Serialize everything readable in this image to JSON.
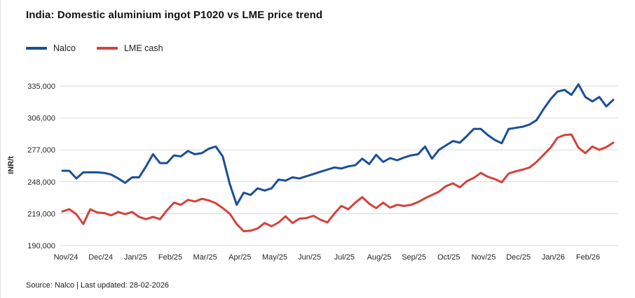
{
  "title": "India: Domestic aluminium ingot P1020 vs LME price trend",
  "legend": [
    {
      "label": "Nalco",
      "color": "#1a4e9a"
    },
    {
      "label": "LME cash",
      "color": "#d3423b"
    }
  ],
  "y_axis": {
    "title": "INR/t",
    "ticks": [
      {
        "label": "335,000",
        "value": 335000
      },
      {
        "label": "306,000",
        "value": 306000
      },
      {
        "label": "277,000",
        "value": 277000
      },
      {
        "label": "248,000",
        "value": 248000
      },
      {
        "label": "219,000",
        "value": 219000
      },
      {
        "label": "190,000",
        "value": 190000
      }
    ]
  },
  "x_axis": {
    "labels": [
      "Nov/24",
      "Dec/24",
      "Jan/25",
      "Feb/25",
      "Mar/25",
      "Apr/25",
      "May/25",
      "Jun/25",
      "Jul/25",
      "Aug/25",
      "Sep/25",
      "Oct/25",
      "Nov/25",
      "Dec/25",
      "Jan/26",
      "Feb/26"
    ]
  },
  "footer": {
    "text": "Source: Nalco | Last updated: 28-02-2026"
  },
  "chart_data": {
    "type": "line",
    "title": "India: Domestic aluminium ingot P1020 vs LME price trend",
    "xlabel": "",
    "ylabel": "INR/t",
    "ylim": [
      190000,
      335000
    ],
    "y_tick_step": 29000,
    "grid": true,
    "legend_position": "top-left",
    "x_categories": [
      "Nov/24",
      "Dec/24",
      "Jan/25",
      "Feb/25",
      "Mar/25",
      "Apr/25",
      "May/25",
      "Jun/25",
      "Jul/25",
      "Aug/25",
      "Sep/25",
      "Oct/25",
      "Nov/25",
      "Dec/25",
      "Jan/26",
      "Feb/26"
    ],
    "points_per_month": 5,
    "series": [
      {
        "name": "Nalco",
        "color": "#1a4e9a",
        "values": [
          258000,
          258000,
          251000,
          256500,
          256500,
          256500,
          256000,
          254500,
          251000,
          247000,
          252000,
          252000,
          262000,
          273000,
          265000,
          265000,
          272000,
          271000,
          276000,
          273000,
          274000,
          278000,
          280000,
          271000,
          246000,
          227000,
          238000,
          236000,
          242000,
          240000,
          242000,
          250000,
          249000,
          252000,
          251000,
          253000,
          255000,
          257000,
          259000,
          261000,
          260000,
          262000,
          263000,
          269000,
          264000,
          272500,
          266000,
          269500,
          267500,
          270000,
          272000,
          273000,
          280000,
          269000,
          277000,
          281000,
          285000,
          283500,
          289500,
          296000,
          296000,
          290500,
          286000,
          283000,
          296000,
          297000,
          298000,
          300000,
          304000,
          314000,
          323000,
          330000,
          331500,
          327000,
          336500,
          325000,
          321000,
          325000,
          316500,
          322500
        ]
      },
      {
        "name": "LME cash",
        "color": "#d3423b",
        "values": [
          221000,
          223000,
          218500,
          209500,
          223000,
          220000,
          219500,
          217500,
          220500,
          218500,
          220500,
          216000,
          214000,
          216000,
          214000,
          222000,
          229000,
          227000,
          231500,
          230000,
          232500,
          231000,
          228500,
          224000,
          219000,
          209500,
          203000,
          203500,
          205500,
          210500,
          207500,
          211000,
          216500,
          210500,
          214500,
          215000,
          217000,
          213500,
          211000,
          219000,
          226000,
          223000,
          229000,
          234000,
          228000,
          224000,
          229000,
          224500,
          227000,
          226000,
          227000,
          229500,
          233000,
          236000,
          239000,
          244000,
          246500,
          243000,
          248500,
          251500,
          256000,
          252500,
          250500,
          247500,
          255500,
          257500,
          259000,
          261000,
          266000,
          272500,
          279000,
          288000,
          290500,
          291000,
          279000,
          274000,
          280000,
          277000,
          279500,
          283500
        ]
      }
    ]
  }
}
